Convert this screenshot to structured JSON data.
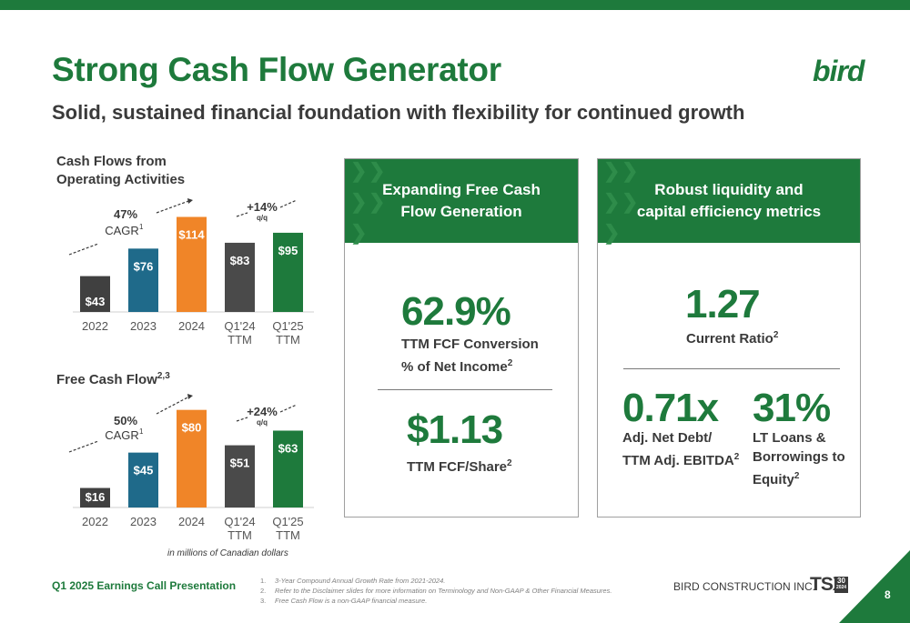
{
  "header": {
    "title": "Strong Cash Flow Generator",
    "subtitle": "Solid, sustained financial foundation with flexibility for continued growth",
    "logo_text": "bird"
  },
  "chart_data": [
    {
      "type": "bar",
      "title": "Cash Flows from Operating Activities",
      "categories": [
        "2022",
        "2023",
        "2024",
        "Q1'24 TTM",
        "Q1'25 TTM"
      ],
      "values": [
        43,
        76,
        114,
        83,
        95
      ],
      "value_labels": [
        "$43",
        "$76",
        "$114",
        "$83",
        "$95"
      ],
      "bar_colors": [
        "#404040",
        "#1f6a8a",
        "#f08528",
        "#4a4a4a",
        "#1e7a3c"
      ],
      "ylim": [
        0,
        120
      ],
      "annotations": {
        "cagr_pct": "47%",
        "cagr_label": "CAGR",
        "cagr_sup": "1",
        "growth": "+14%",
        "growth_sub": "q/q"
      }
    },
    {
      "type": "bar",
      "title": "Free Cash Flow",
      "title_sup": "2,3",
      "categories": [
        "2022",
        "2023",
        "2024",
        "Q1'24 TTM",
        "Q1'25 TTM"
      ],
      "values": [
        16,
        45,
        80,
        51,
        63
      ],
      "value_labels": [
        "$16",
        "$45",
        "$80",
        "$51",
        "$63"
      ],
      "bar_colors": [
        "#404040",
        "#1f6a8a",
        "#f08528",
        "#4a4a4a",
        "#1e7a3c"
      ],
      "ylim": [
        0,
        82
      ],
      "annotations": {
        "cagr_pct": "50%",
        "cagr_label": "CAGR",
        "cagr_sup": "1",
        "growth": "+24%",
        "growth_sub": "q/q"
      }
    }
  ],
  "unit_note": "in millions of Canadian dollars",
  "panel_fcf": {
    "heading": "Expanding Free Cash Flow Generation",
    "metric1_value": "62.9%",
    "metric1_label_line1": "TTM FCF Conversion",
    "metric1_label_line2": "% of Net Income",
    "metric1_sup": "2",
    "metric2_value": "$1.13",
    "metric2_label": "TTM FCF/Share",
    "metric2_sup": "2"
  },
  "panel_liquidity": {
    "heading": "Robust liquidity and capital efficiency metrics",
    "metric1_value": "1.27",
    "metric1_label": "Current Ratio",
    "metric1_sup": "2",
    "metric2_value": "0.71x",
    "metric2_label_line1": "Adj. Net Debt/",
    "metric2_label_line2": "TTM Adj. EBITDA",
    "metric2_sup": "2",
    "metric3_value": "31%",
    "metric3_label_line1": "LT Loans &",
    "metric3_label_line2": "Borrowings to",
    "metric3_label_line3": "Equity",
    "metric3_sup": "2"
  },
  "footer": {
    "presentation": "Q1 2025 Earnings Call Presentation",
    "notes": [
      {
        "num": "1.",
        "text": "3-Year Compound Annual Growth Rate from 2021-2024."
      },
      {
        "num": "2.",
        "text": "Refer to the Disclaimer slides for more information on Terminology and Non-GAAP & Other Financial Measures."
      },
      {
        "num": "3.",
        "text": "Free Cash Flow is a non-GAAP financial measure."
      }
    ],
    "company": "BIRD CONSTRUCTION INC.",
    "exchange": "TSX",
    "exchange_badge": "30",
    "exchange_badge_sub": "2024",
    "page_number": "8"
  },
  "colors": {
    "brand_green": "#1e7a3c",
    "text_dark": "#3a3a3a"
  }
}
